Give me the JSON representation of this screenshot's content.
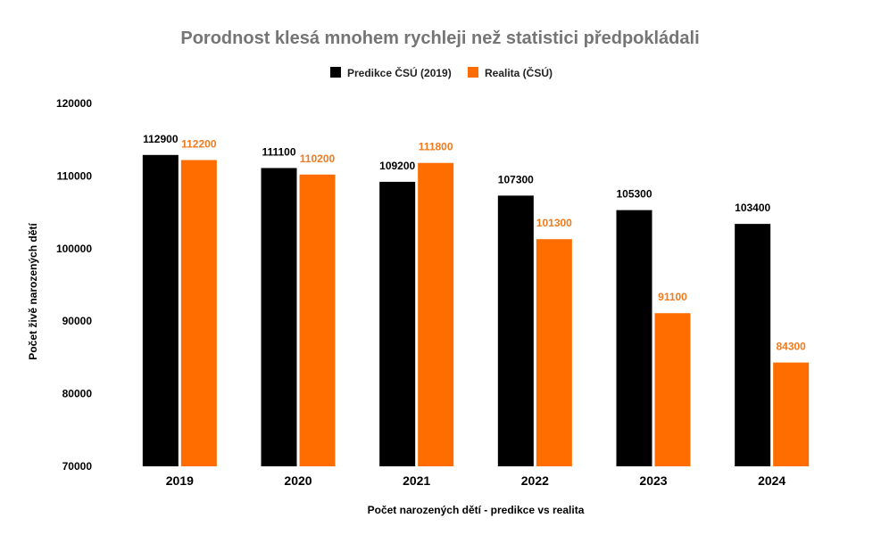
{
  "chart_data": {
    "type": "bar",
    "title": "Porodnost klesá mnohem rychleji než statistici předpokládali",
    "xlabel": "Počet narozených dětí - predikce vs realita",
    "ylabel": "Počet živě narozených dětí",
    "categories": [
      "2019",
      "2020",
      "2021",
      "2022",
      "2023",
      "2024"
    ],
    "ylim": [
      70000,
      120000
    ],
    "yticks": [
      "70000",
      "80000",
      "90000",
      "100000",
      "110000",
      "120000"
    ],
    "grid": false,
    "legend_position": "top-center",
    "series": [
      {
        "name": "Predikce ČSÚ (2019)",
        "color": "#000000",
        "label_color": "#000000",
        "values": [
          112900,
          111100,
          109200,
          107300,
          105300,
          103400
        ]
      },
      {
        "name": "Realita (ČSÚ)",
        "color": "#ff6d01",
        "label_color": "#f07a1e",
        "values": [
          112200,
          110200,
          111800,
          101300,
          91100,
          84300
        ]
      }
    ]
  }
}
